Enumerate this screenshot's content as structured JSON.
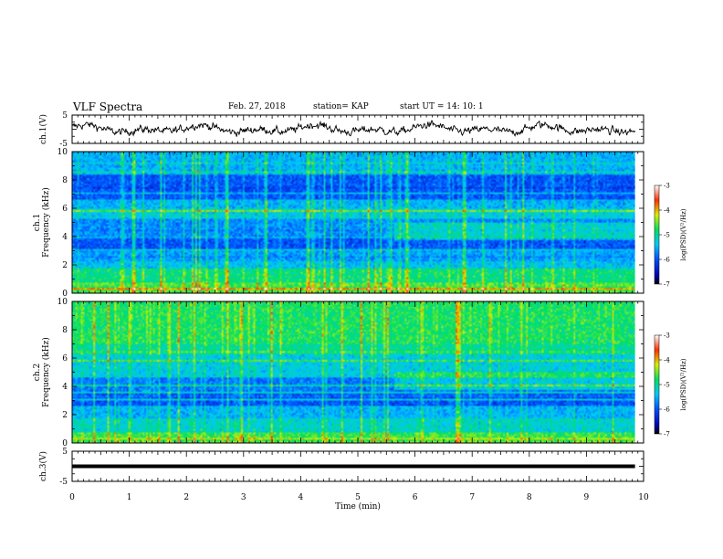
{
  "header": {
    "title": "VLF Spectra",
    "date": "Feb. 27, 2018",
    "station": "station= KAP",
    "start": "start  UT =   14: 10: 1"
  },
  "chart_data": [
    {
      "type": "line",
      "name": "ch1-waveform",
      "ylabel": "ch.1(V)",
      "ylim": [
        -5,
        5
      ],
      "yticks": [
        "5",
        "-5"
      ],
      "xlim": [
        0,
        10
      ]
    },
    {
      "type": "heatmap",
      "name": "ch1-spectrogram",
      "ylabel": "ch.1\nFrequency (kHz)",
      "ylim": [
        0,
        10
      ],
      "yticks": [
        "0",
        "2",
        "4",
        "6",
        "8",
        "10"
      ],
      "xlim": [
        0,
        10
      ],
      "data_end_min": 9.85,
      "colorbar": {
        "title": "log(PSD)(V²/Hz)",
        "range": [
          -7,
          -3
        ],
        "ticks": [
          "-3",
          "-4",
          "-5",
          "-6",
          "-7"
        ]
      },
      "bands_khz": [
        {
          "lo": 0.0,
          "hi": 0.7,
          "level": -4.6
        },
        {
          "lo": 0.7,
          "hi": 1.8,
          "level": -4.9
        },
        {
          "lo": 1.8,
          "hi": 2.3,
          "level": -5.4
        },
        {
          "lo": 2.3,
          "hi": 3.0,
          "level": -5.6
        },
        {
          "lo": 3.0,
          "hi": 4.0,
          "level": -6.0
        },
        {
          "lo": 4.0,
          "hi": 5.2,
          "level": -5.7
        },
        {
          "lo": 5.2,
          "hi": 6.0,
          "level": -5.3
        },
        {
          "lo": 6.0,
          "hi": 6.6,
          "level": -5.5
        },
        {
          "lo": 6.6,
          "hi": 8.5,
          "level": -6.0
        },
        {
          "lo": 8.5,
          "hi": 10.0,
          "level": -5.5
        }
      ]
    },
    {
      "type": "heatmap",
      "name": "ch2-spectrogram",
      "ylabel": "ch.2\nFrequency (kHz)",
      "ylim": [
        0,
        10
      ],
      "yticks": [
        "0",
        "2",
        "4",
        "6",
        "8",
        "10"
      ],
      "xlim": [
        0,
        10
      ],
      "data_end_min": 9.85,
      "colorbar": {
        "title": "log(PSD)(V²/Hz)",
        "range": [
          -7,
          -3
        ],
        "ticks": [
          "-3",
          "-4",
          "-5",
          "-6",
          "-7"
        ]
      },
      "bands_khz": [
        {
          "lo": 0.0,
          "hi": 0.7,
          "level": -4.7
        },
        {
          "lo": 0.7,
          "hi": 1.8,
          "level": -5.2
        },
        {
          "lo": 1.8,
          "hi": 2.6,
          "level": -5.5
        },
        {
          "lo": 2.6,
          "hi": 3.6,
          "level": -6.0
        },
        {
          "lo": 3.6,
          "hi": 4.6,
          "level": -5.8
        },
        {
          "lo": 4.6,
          "hi": 6.2,
          "level": -5.3
        },
        {
          "lo": 6.2,
          "hi": 7.0,
          "level": -5.0
        },
        {
          "lo": 7.0,
          "hi": 10.0,
          "level": -4.8
        }
      ]
    },
    {
      "type": "line",
      "name": "ch3-waveform",
      "ylabel": "ch.3(V)",
      "ylim": [
        -5,
        5
      ],
      "yticks": [
        "5",
        "-5"
      ],
      "xlim": [
        0,
        10
      ],
      "constant_value": 0,
      "xlabel": "Time  (min)",
      "xticks": [
        "0",
        "1",
        "2",
        "3",
        "4",
        "5",
        "6",
        "7",
        "8",
        "9",
        "10"
      ]
    }
  ]
}
